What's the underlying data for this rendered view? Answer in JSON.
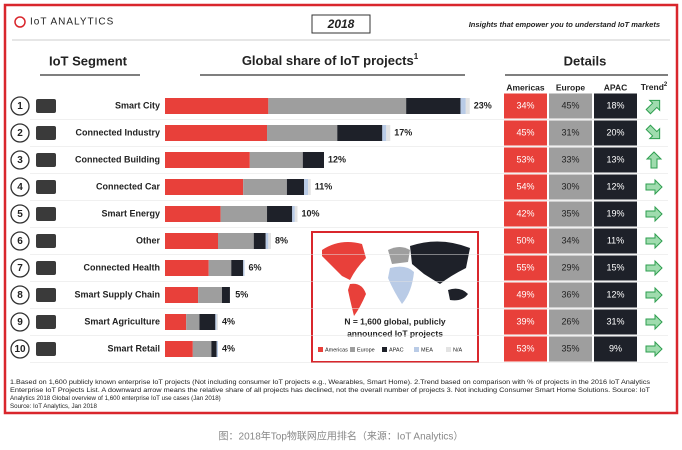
{
  "chart_data": {
    "type": "bar",
    "orientation": "horizontal",
    "stacked": true,
    "brand": "IoT ANALYTICS",
    "title": "2018",
    "tagline": "Insights that empower you to understand IoT markets",
    "segment_header": "IoT Segment",
    "share_header": "Global share of IoT projects",
    "share_header_note": "1",
    "details_header": "Details",
    "trend_header": "Trend",
    "trend_header_note": "2",
    "ranks": [
      1,
      2,
      3,
      4,
      5,
      6,
      7,
      8,
      9,
      10
    ],
    "categories": [
      "Smart City",
      "Connected Industry",
      "Connected Building",
      "Connected Car",
      "Smart Energy",
      "Other",
      "Connected Health",
      "Smart Supply Chain",
      "Smart Agriculture",
      "Smart Retail"
    ],
    "xlim": [
      0,
      24
    ],
    "series": [
      {
        "name": "Americas",
        "color": "#e8403a",
        "values": [
          7.8,
          7.7,
          6.4,
          5.9,
          4.2,
          4.0,
          3.3,
          2.5,
          1.6,
          2.1
        ]
      },
      {
        "name": "Europe",
        "color": "#9e9e9e",
        "values": [
          10.4,
          5.3,
          4.0,
          3.3,
          3.5,
          2.7,
          1.7,
          1.8,
          1.0,
          1.4
        ]
      },
      {
        "name": "APAC",
        "color": "#1e2129",
        "values": [
          4.1,
          3.4,
          1.6,
          1.3,
          1.9,
          0.9,
          0.9,
          0.6,
          1.2,
          0.4
        ]
      },
      {
        "name": "MEA",
        "color": "#b9cbe6",
        "values": [
          0.4,
          0.3,
          0,
          0.3,
          0.2,
          0.2,
          0.1,
          0,
          0.1,
          0.1
        ]
      },
      {
        "name": "N/A",
        "color": "#e3e3e3",
        "values": [
          0.3,
          0.3,
          0,
          0.2,
          0.2,
          0.2,
          0,
          0,
          0.1,
          0
        ]
      }
    ],
    "totals": {
      "values": [
        23,
        17,
        12,
        11,
        10,
        8,
        6,
        5,
        4,
        4
      ],
      "value_labels": [
        "23%",
        "17%",
        "12%",
        "11%",
        "10%",
        "8%",
        "6%",
        "5%",
        "4%",
        "4%"
      ]
    },
    "details": {
      "columns": [
        "Americas",
        "Europe",
        "APAC"
      ],
      "colors": [
        "#e8403a",
        "#9e9e9e",
        "#1e2129"
      ],
      "rows": [
        [
          "34%",
          "45%",
          "18%"
        ],
        [
          "45%",
          "31%",
          "20%"
        ],
        [
          "53%",
          "33%",
          "13%"
        ],
        [
          "54%",
          "30%",
          "12%"
        ],
        [
          "42%",
          "35%",
          "19%"
        ],
        [
          "50%",
          "34%",
          "11%"
        ],
        [
          "55%",
          "29%",
          "15%"
        ],
        [
          "49%",
          "36%",
          "12%"
        ],
        [
          "39%",
          "26%",
          "31%"
        ],
        [
          "53%",
          "35%",
          "9%"
        ]
      ]
    },
    "trends": [
      "up-right",
      "down-right",
      "up",
      "right",
      "right",
      "right",
      "right",
      "right",
      "right",
      "right"
    ],
    "map_note": [
      "N = 1,600 global, publicly",
      "announced IoT projects"
    ],
    "footnotes": [
      "1.Based on 1,600 publicly known enterprise IoT projects (Not including consumer IoT projects e.g., Wearables, Smart Home). 2.Trend based on comparison with % of projects in the 2016 IoT Analytics",
      "Enterprise IoT Projects List. A downward arrow  means the relative share of all projects has declined, not the overall number of projects 3. Not including Consumer Smart Home Solutions. Source: IoT",
      "Analytics 2018 Global overview of 1,600 enterprise IoT use cases (Jan 2018)",
      "Source: IoT Analytics, Jan 2018"
    ],
    "caption": "图：2018年Top物联网应用排名（来源：IoT Analytics）"
  }
}
